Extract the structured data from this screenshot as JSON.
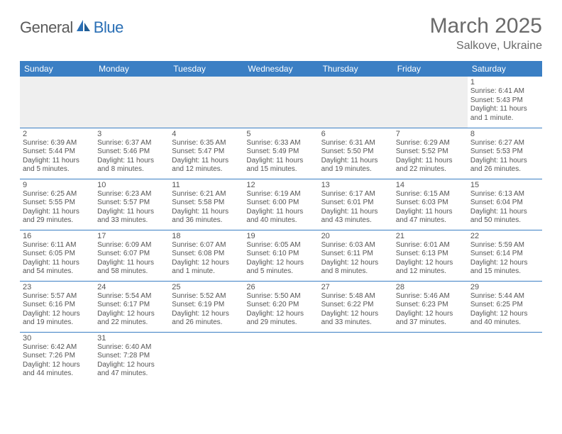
{
  "logo": {
    "part1": "General",
    "part2": "Blue"
  },
  "title": "March 2025",
  "location": "Salkove, Ukraine",
  "colors": {
    "header_bg": "#3b7fc4",
    "header_text": "#ffffff",
    "rule": "#3b7fc4",
    "logo_gray": "#5a5a5a",
    "logo_blue": "#2a6fb5",
    "text": "#555555",
    "blank_bg": "#efefef"
  },
  "day_headers": [
    "Sunday",
    "Monday",
    "Tuesday",
    "Wednesday",
    "Thursday",
    "Friday",
    "Saturday"
  ],
  "days": {
    "1": {
      "sunrise": "6:41 AM",
      "sunset": "5:43 PM",
      "daylight": "11 hours and 1 minute."
    },
    "2": {
      "sunrise": "6:39 AM",
      "sunset": "5:44 PM",
      "daylight": "11 hours and 5 minutes."
    },
    "3": {
      "sunrise": "6:37 AM",
      "sunset": "5:46 PM",
      "daylight": "11 hours and 8 minutes."
    },
    "4": {
      "sunrise": "6:35 AM",
      "sunset": "5:47 PM",
      "daylight": "11 hours and 12 minutes."
    },
    "5": {
      "sunrise": "6:33 AM",
      "sunset": "5:49 PM",
      "daylight": "11 hours and 15 minutes."
    },
    "6": {
      "sunrise": "6:31 AM",
      "sunset": "5:50 PM",
      "daylight": "11 hours and 19 minutes."
    },
    "7": {
      "sunrise": "6:29 AM",
      "sunset": "5:52 PM",
      "daylight": "11 hours and 22 minutes."
    },
    "8": {
      "sunrise": "6:27 AM",
      "sunset": "5:53 PM",
      "daylight": "11 hours and 26 minutes."
    },
    "9": {
      "sunrise": "6:25 AM",
      "sunset": "5:55 PM",
      "daylight": "11 hours and 29 minutes."
    },
    "10": {
      "sunrise": "6:23 AM",
      "sunset": "5:57 PM",
      "daylight": "11 hours and 33 minutes."
    },
    "11": {
      "sunrise": "6:21 AM",
      "sunset": "5:58 PM",
      "daylight": "11 hours and 36 minutes."
    },
    "12": {
      "sunrise": "6:19 AM",
      "sunset": "6:00 PM",
      "daylight": "11 hours and 40 minutes."
    },
    "13": {
      "sunrise": "6:17 AM",
      "sunset": "6:01 PM",
      "daylight": "11 hours and 43 minutes."
    },
    "14": {
      "sunrise": "6:15 AM",
      "sunset": "6:03 PM",
      "daylight": "11 hours and 47 minutes."
    },
    "15": {
      "sunrise": "6:13 AM",
      "sunset": "6:04 PM",
      "daylight": "11 hours and 50 minutes."
    },
    "16": {
      "sunrise": "6:11 AM",
      "sunset": "6:05 PM",
      "daylight": "11 hours and 54 minutes."
    },
    "17": {
      "sunrise": "6:09 AM",
      "sunset": "6:07 PM",
      "daylight": "11 hours and 58 minutes."
    },
    "18": {
      "sunrise": "6:07 AM",
      "sunset": "6:08 PM",
      "daylight": "12 hours and 1 minute."
    },
    "19": {
      "sunrise": "6:05 AM",
      "sunset": "6:10 PM",
      "daylight": "12 hours and 5 minutes."
    },
    "20": {
      "sunrise": "6:03 AM",
      "sunset": "6:11 PM",
      "daylight": "12 hours and 8 minutes."
    },
    "21": {
      "sunrise": "6:01 AM",
      "sunset": "6:13 PM",
      "daylight": "12 hours and 12 minutes."
    },
    "22": {
      "sunrise": "5:59 AM",
      "sunset": "6:14 PM",
      "daylight": "12 hours and 15 minutes."
    },
    "23": {
      "sunrise": "5:57 AM",
      "sunset": "6:16 PM",
      "daylight": "12 hours and 19 minutes."
    },
    "24": {
      "sunrise": "5:54 AM",
      "sunset": "6:17 PM",
      "daylight": "12 hours and 22 minutes."
    },
    "25": {
      "sunrise": "5:52 AM",
      "sunset": "6:19 PM",
      "daylight": "12 hours and 26 minutes."
    },
    "26": {
      "sunrise": "5:50 AM",
      "sunset": "6:20 PM",
      "daylight": "12 hours and 29 minutes."
    },
    "27": {
      "sunrise": "5:48 AM",
      "sunset": "6:22 PM",
      "daylight": "12 hours and 33 minutes."
    },
    "28": {
      "sunrise": "5:46 AM",
      "sunset": "6:23 PM",
      "daylight": "12 hours and 37 minutes."
    },
    "29": {
      "sunrise": "5:44 AM",
      "sunset": "6:25 PM",
      "daylight": "12 hours and 40 minutes."
    },
    "30": {
      "sunrise": "6:42 AM",
      "sunset": "7:26 PM",
      "daylight": "12 hours and 44 minutes."
    },
    "31": {
      "sunrise": "6:40 AM",
      "sunset": "7:28 PM",
      "daylight": "12 hours and 47 minutes."
    }
  },
  "grid": [
    [
      null,
      null,
      null,
      null,
      null,
      null,
      "1"
    ],
    [
      "2",
      "3",
      "4",
      "5",
      "6",
      "7",
      "8"
    ],
    [
      "9",
      "10",
      "11",
      "12",
      "13",
      "14",
      "15"
    ],
    [
      "16",
      "17",
      "18",
      "19",
      "20",
      "21",
      "22"
    ],
    [
      "23",
      "24",
      "25",
      "26",
      "27",
      "28",
      "29"
    ],
    [
      "30",
      "31",
      null,
      null,
      null,
      null,
      null
    ]
  ],
  "labels": {
    "sunrise_prefix": "Sunrise: ",
    "sunset_prefix": "Sunset: ",
    "daylight_prefix": "Daylight: "
  }
}
